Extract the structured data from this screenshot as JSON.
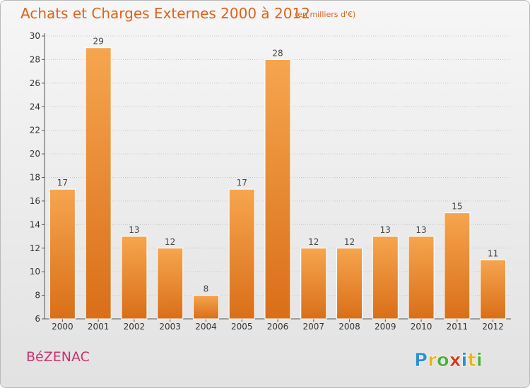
{
  "title": "Achats et Charges Externes 2000 à 2012",
  "unit": "(en milliers d'€)",
  "commune": "BéZENAC",
  "logo": {
    "text": "Proxiti",
    "colors": [
      "#2a8fd6",
      "#e6b41c",
      "#4fae3b",
      "#d6361c",
      "#2a8fd6",
      "#e6b41c",
      "#4fae3b"
    ]
  },
  "colors": {
    "bar_top": "#f6a54f",
    "bar_bottom": "#d96f18",
    "bar_edge": "#ffffff"
  },
  "chart_data": {
    "type": "bar",
    "categories": [
      "2000",
      "2001",
      "2002",
      "2003",
      "2004",
      "2005",
      "2006",
      "2007",
      "2008",
      "2009",
      "2010",
      "2011",
      "2012"
    ],
    "values": [
      17,
      29,
      13,
      12,
      8,
      17,
      28,
      12,
      12,
      13,
      13,
      15,
      11
    ],
    "ylim": [
      6,
      30
    ],
    "yticks": [
      6,
      8,
      10,
      12,
      14,
      16,
      18,
      20,
      22,
      24,
      26,
      28,
      30
    ],
    "grid": true
  }
}
